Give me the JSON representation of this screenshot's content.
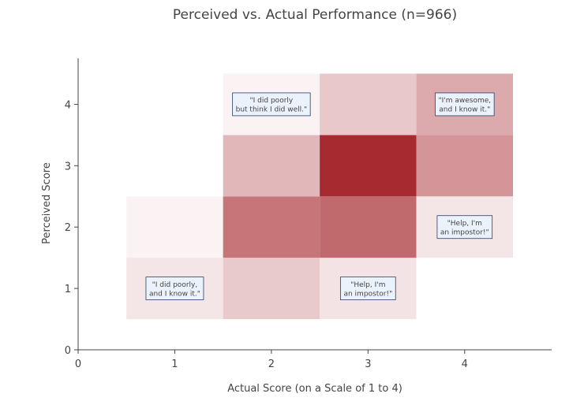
{
  "chart_data": {
    "type": "heatmap",
    "title": "Perceived vs. Actual Performance (n=966)",
    "xlabel": "Actual Score (on a Scale of 1 to 4)",
    "ylabel": "Perceived Score",
    "xlim": [
      0,
      4.9
    ],
    "ylim": [
      0,
      4.75
    ],
    "x_ticks": [
      "0",
      "1",
      "2",
      "3",
      "4"
    ],
    "y_ticks": [
      "0",
      "1",
      "2",
      "3",
      "4"
    ],
    "colorscale": {
      "low": "#ffffff",
      "high": "#a72a30"
    },
    "cells": [
      {
        "x": 1,
        "y": 1,
        "value": 0.12
      },
      {
        "x": 2,
        "y": 1,
        "value": 0.25
      },
      {
        "x": 3,
        "y": 1,
        "value": 0.13
      },
      {
        "x": 4,
        "y": 1,
        "value": 0.0
      },
      {
        "x": 1,
        "y": 2,
        "value": 0.06
      },
      {
        "x": 2,
        "y": 2,
        "value": 0.65
      },
      {
        "x": 3,
        "y": 2,
        "value": 0.7
      },
      {
        "x": 4,
        "y": 2,
        "value": 0.12
      },
      {
        "x": 1,
        "y": 3,
        "value": 0.0
      },
      {
        "x": 2,
        "y": 3,
        "value": 0.34
      },
      {
        "x": 3,
        "y": 3,
        "value": 1.0
      },
      {
        "x": 4,
        "y": 3,
        "value": 0.5
      },
      {
        "x": 1,
        "y": 4,
        "value": 0.0
      },
      {
        "x": 2,
        "y": 4,
        "value": 0.06
      },
      {
        "x": 3,
        "y": 4,
        "value": 0.26
      },
      {
        "x": 4,
        "y": 4,
        "value": 0.4
      }
    ],
    "annotations": [
      {
        "x": 1,
        "y": 1,
        "lines": [
          "\"I did poorly,",
          "and I know it.\""
        ]
      },
      {
        "x": 2,
        "y": 4,
        "lines": [
          "\"I did poorly",
          "but think I did well.\""
        ]
      },
      {
        "x": 3,
        "y": 1,
        "lines": [
          "\"Help, I'm",
          "an impostor!\""
        ]
      },
      {
        "x": 4,
        "y": 2,
        "lines": [
          "\"Help, I'm",
          "an impostor!\""
        ]
      },
      {
        "x": 4,
        "y": 4,
        "lines": [
          "\"I'm awesome,",
          "and I know it.\""
        ]
      }
    ]
  }
}
